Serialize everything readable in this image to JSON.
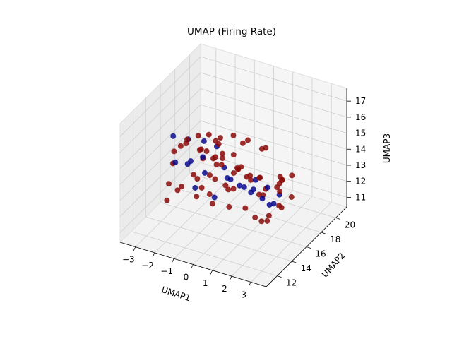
{
  "chart_data": {
    "type": "scatter",
    "projection": "3d",
    "title": "UMAP (Firing Rate)",
    "xlabel": "UMAP1",
    "ylabel": "UMAP2",
    "zlabel": "UMAP3",
    "xlim": [
      -3.8,
      3.8
    ],
    "ylim": [
      10.5,
      21.5
    ],
    "zlim": [
      10.4,
      17.8
    ],
    "xticks": [
      "−3",
      "−2",
      "−1",
      "0",
      "1",
      "2",
      "3"
    ],
    "yticks": [
      "12",
      "14",
      "16",
      "18",
      "20"
    ],
    "zticks": [
      "11",
      "12",
      "13",
      "14",
      "15",
      "16",
      "17"
    ],
    "grid": true,
    "colors": {
      "low": "#0a0a8c",
      "high": "#8c0a0a"
    },
    "series": [
      {
        "color": "#8c0a0a",
        "points": [
          [
            -2.1,
            15.2,
            15.3
          ],
          [
            -1.6,
            15.8,
            14.6
          ],
          [
            -1.2,
            16.4,
            13.9
          ],
          [
            -0.6,
            15.1,
            14.8
          ],
          [
            -0.1,
            16.9,
            13.4
          ],
          [
            0.4,
            15.6,
            14.2
          ],
          [
            0.9,
            17.2,
            13.1
          ],
          [
            1.3,
            16.1,
            12.7
          ],
          [
            1.8,
            17.6,
            12.4
          ],
          [
            2.2,
            16.8,
            11.9
          ],
          [
            -2.4,
            14.2,
            14.9
          ],
          [
            -1.9,
            13.8,
            15.6
          ],
          [
            -1.3,
            14.6,
            16.1
          ],
          [
            -0.8,
            13.5,
            15.9
          ],
          [
            -0.2,
            14.1,
            16.4
          ],
          [
            0.3,
            13.2,
            16.8
          ],
          [
            0.8,
            13.9,
            17.2
          ],
          [
            1.1,
            14.4,
            16.6
          ],
          [
            0.6,
            12.8,
            15.8
          ],
          [
            0.1,
            12.5,
            15.1
          ],
          [
            -0.7,
            12.9,
            14.4
          ],
          [
            -1.4,
            12.6,
            13.8
          ],
          [
            -1.8,
            13.1,
            13.2
          ],
          [
            -2.2,
            12.7,
            12.6
          ],
          [
            -1.5,
            14.9,
            12.1
          ],
          [
            -0.9,
            15.5,
            11.6
          ],
          [
            -0.3,
            16.2,
            11.3
          ],
          [
            0.2,
            17.1,
            11.0
          ],
          [
            0.7,
            18.2,
            11.5
          ],
          [
            1.2,
            18.8,
            11.9
          ],
          [
            1.6,
            18.1,
            12.6
          ],
          [
            2.0,
            17.4,
            13.3
          ],
          [
            2.4,
            16.3,
            13.9
          ],
          [
            2.6,
            15.4,
            12.8
          ],
          [
            2.1,
            15.1,
            11.8
          ],
          [
            1.5,
            15.9,
            11.2
          ],
          [
            0.9,
            16.6,
            10.9
          ],
          [
            0.4,
            18.6,
            12.3
          ],
          [
            -0.4,
            18.1,
            12.9
          ],
          [
            -1.1,
            17.4,
            13.5
          ],
          [
            -1.7,
            16.8,
            14.0
          ],
          [
            -2.5,
            16.1,
            14.5
          ],
          [
            -2.8,
            15.1,
            13.6
          ],
          [
            -2.6,
            14.0,
            12.9
          ],
          [
            -1.0,
            14.3,
            13.1
          ],
          [
            -0.5,
            14.8,
            13.6
          ],
          [
            0.0,
            15.3,
            12.9
          ],
          [
            0.5,
            14.7,
            13.4
          ],
          [
            1.0,
            15.2,
            14.1
          ],
          [
            1.4,
            14.6,
            14.6
          ],
          [
            0.2,
            16.0,
            14.0
          ],
          [
            -0.6,
            16.5,
            12.4
          ],
          [
            1.7,
            16.4,
            11.4
          ],
          [
            2.3,
            17.9,
            12.1
          ],
          [
            1.9,
            19.0,
            12.8
          ],
          [
            1.1,
            19.5,
            12.2
          ],
          [
            0.5,
            19.1,
            11.4
          ],
          [
            -0.2,
            18.9,
            11.8
          ],
          [
            -0.9,
            18.4,
            12.2
          ],
          [
            -1.6,
            17.9,
            12.7
          ],
          [
            -2.0,
            17.1,
            13.3
          ],
          [
            -2.3,
            16.6,
            12.4
          ],
          [
            -1.2,
            15.9,
            11.9
          ],
          [
            0.8,
            17.8,
            14.6
          ],
          [
            1.3,
            17.0,
            15.2
          ],
          [
            0.6,
            16.4,
            15.7
          ],
          [
            0.0,
            14.5,
            15.5
          ],
          [
            -0.4,
            13.7,
            16.9
          ],
          [
            0.5,
            12.9,
            17.4
          ],
          [
            1.0,
            13.4,
            16.3
          ]
        ]
      },
      {
        "color": "#0a0a8c",
        "points": [
          [
            -2.6,
            14.6,
            15.6
          ],
          [
            -2.2,
            15.6,
            15.1
          ],
          [
            -1.8,
            14.9,
            14.2
          ],
          [
            -1.3,
            15.4,
            15.4
          ],
          [
            -0.9,
            16.1,
            14.9
          ],
          [
            -0.4,
            15.8,
            13.9
          ],
          [
            0.1,
            16.6,
            12.6
          ],
          [
            0.6,
            15.9,
            13.0
          ],
          [
            1.2,
            16.8,
            12.1
          ],
          [
            1.6,
            17.3,
            11.7
          ],
          [
            -1.0,
            13.4,
            13.5
          ],
          [
            -0.3,
            14.2,
            12.8
          ],
          [
            0.3,
            17.6,
            11.8
          ],
          [
            0.9,
            18.3,
            12.0
          ],
          [
            -1.6,
            16.3,
            12.9
          ],
          [
            -2.0,
            15.0,
            13.9
          ],
          [
            -0.7,
            17.0,
            12.6
          ],
          [
            1.8,
            16.2,
            12.2
          ],
          [
            0.2,
            15.1,
            13.7
          ],
          [
            -2.3,
            14.1,
            14.3
          ],
          [
            -1.1,
            14.7,
            14.8
          ],
          [
            0.7,
            17.2,
            12.9
          ],
          [
            1.4,
            18.6,
            11.6
          ],
          [
            -0.1,
            19.0,
            11.2
          ]
        ]
      }
    ]
  }
}
